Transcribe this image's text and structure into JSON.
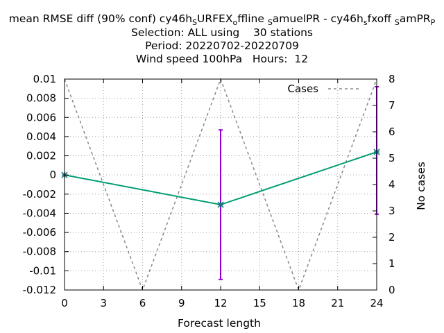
{
  "chart_data": {
    "type": "line",
    "title_lines": [
      "mean RMSE diff (90% conf) cy46h_SURFEX_offline_SamuelPR - cy46h_sfxoff_SamPR",
      "Selection: ALL using    30 stations",
      "Period: 20220702-20220709",
      "Wind speed 100hPa   Hours:  12"
    ],
    "title_first_line_parts": [
      {
        "text": "mean RMSE diff (90% conf) cy46h",
        "sub": false
      },
      {
        "text": "S",
        "sub": true
      },
      {
        "text": "URFEX",
        "sub": false
      },
      {
        "text": "o",
        "sub": true
      },
      {
        "text": "ffline ",
        "sub": false
      },
      {
        "text": "S",
        "sub": true
      },
      {
        "text": "amuelPR - cy46h",
        "sub": false
      },
      {
        "text": "s",
        "sub": true
      },
      {
        "text": "fxoff ",
        "sub": false
      },
      {
        "text": "S",
        "sub": true
      },
      {
        "text": "amPR",
        "sub": false
      },
      {
        "text": "P",
        "sub": true
      }
    ],
    "xlabel": "Forecast length",
    "ylabel": "",
    "y2label": "No cases",
    "xlim": [
      0,
      24
    ],
    "ylim": [
      -0.012,
      0.01
    ],
    "y2lim": [
      0,
      8
    ],
    "x_ticks": [
      0,
      3,
      6,
      9,
      12,
      15,
      18,
      21,
      24
    ],
    "y_ticks": [
      0.01,
      0.008,
      0.006,
      0.004,
      0.002,
      0,
      -0.002,
      -0.004,
      -0.006,
      -0.008,
      -0.01,
      -0.012
    ],
    "y2_ticks": [
      0,
      1,
      2,
      3,
      4,
      5,
      6,
      7,
      8
    ],
    "grid": true,
    "legend": {
      "position": "top-right",
      "entries": [
        "Cases"
      ]
    },
    "series": [
      {
        "name": "Cases",
        "axis": "y2",
        "style": "dashed",
        "color": "#888888",
        "x": [
          0,
          6,
          12,
          18,
          24
        ],
        "values": [
          8,
          0,
          8,
          0,
          8
        ]
      },
      {
        "name": "",
        "axis": "y",
        "style": "line-points",
        "color": "#009e73",
        "x": [
          0,
          12,
          24
        ],
        "values": [
          0,
          -0.0031,
          0.0024
        ]
      }
    ],
    "error_bars": {
      "color": "#9400d3",
      "items": [
        {
          "x": 12,
          "low": -0.0109,
          "high": 0.0047
        },
        {
          "x": 24,
          "low": -0.0041,
          "high": 0.0092
        }
      ]
    }
  }
}
